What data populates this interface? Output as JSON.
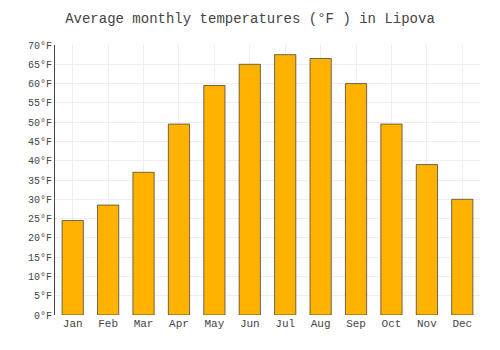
{
  "chart_data": {
    "type": "bar",
    "title": "Average monthly temperatures (°F ) in Lipova",
    "categories": [
      "Jan",
      "Feb",
      "Mar",
      "Apr",
      "May",
      "Jun",
      "Jul",
      "Aug",
      "Sep",
      "Oct",
      "Nov",
      "Dec"
    ],
    "values": [
      24.5,
      28.5,
      37,
      49.5,
      59.5,
      65,
      67.5,
      66.5,
      60,
      49.5,
      39,
      30
    ],
    "color": "#FFB300",
    "ylim": [
      0,
      70
    ],
    "yticks": [
      {
        "value": 0,
        "label": "0°F"
      },
      {
        "value": 5,
        "label": "5°F"
      },
      {
        "value": 10,
        "label": "10°F"
      },
      {
        "value": 15,
        "label": "15°F"
      },
      {
        "value": 20,
        "label": "20°F"
      },
      {
        "value": 25,
        "label": "25°F"
      },
      {
        "value": 30,
        "label": "30°F"
      },
      {
        "value": 35,
        "label": "35°F"
      },
      {
        "value": 40,
        "label": "40°F"
      },
      {
        "value": 45,
        "label": "45°F"
      },
      {
        "value": 50,
        "label": "50°F"
      },
      {
        "value": 55,
        "label": "55°F"
      },
      {
        "value": 60,
        "label": "60°F"
      },
      {
        "value": 65,
        "label": "65°F"
      },
      {
        "value": 70,
        "label": "70°F"
      }
    ],
    "grid": true
  }
}
